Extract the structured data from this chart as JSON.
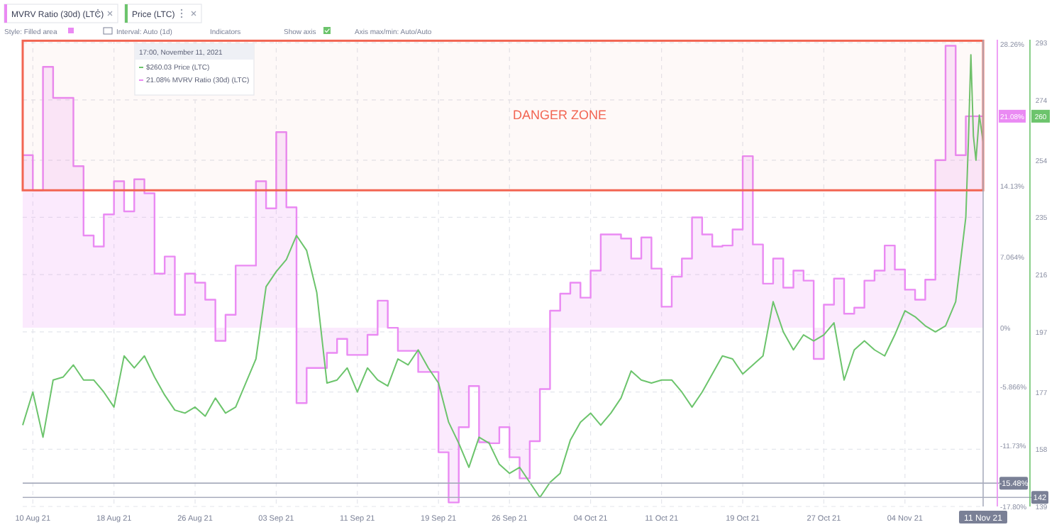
{
  "chart_data": {
    "type": "step",
    "legend": "top left",
    "grid": true,
    "xlim": [
      "2021-08-09",
      "2021-11-11T17:00"
    ],
    "xticks": [
      {
        "value": "2021-08-10",
        "label": "10 Aug 21"
      },
      {
        "value": "2021-08-18",
        "label": "18 Aug 21"
      },
      {
        "value": "2021-08-26",
        "label": "26 Aug 21"
      },
      {
        "value": "2021-09-03",
        "label": "03 Sep 21"
      },
      {
        "value": "2021-09-11",
        "label": "11 Sep 21"
      },
      {
        "value": "2021-09-19",
        "label": "19 Sep 21"
      },
      {
        "value": "2021-09-26",
        "label": "26 Sep 21"
      },
      {
        "value": "2021-10-04",
        "label": "04 Oct 21"
      },
      {
        "value": "2021-10-11",
        "label": "11 Oct 21"
      },
      {
        "value": "2021-10-19",
        "label": "19 Oct 21"
      },
      {
        "value": "2021-10-27",
        "label": "27 Oct 21"
      },
      {
        "value": "2021-11-04",
        "label": "04 Nov 21"
      }
    ],
    "ylim": [
      -17.8,
      28.7
    ],
    "yticks": [
      {
        "value": 28.26,
        "label": "28.26%"
      },
      {
        "value": 14.13,
        "label": "14.13%"
      },
      {
        "value": 7.064,
        "label": "7.064%"
      },
      {
        "value": 0,
        "label": "0%"
      },
      {
        "value": -5.866,
        "label": "-5.866%"
      },
      {
        "value": -11.73,
        "label": "-11.73%"
      },
      {
        "value": -17.8,
        "label": "-17.80%"
      }
    ],
    "y2lim": [
      139,
      294
    ],
    "y2ticks": [
      293,
      274,
      254,
      235,
      216,
      197,
      177,
      158,
      139
    ],
    "series": [
      {
        "name": "MVRV Ratio (30d) (LTC)",
        "color": "#ea8af3",
        "x": [
          "2021-08-09",
          "2021-08-10",
          "2021-08-11",
          "2021-08-12",
          "2021-08-13",
          "2021-08-14",
          "2021-08-15",
          "2021-08-16",
          "2021-08-17",
          "2021-08-18",
          "2021-08-19",
          "2021-08-20",
          "2021-08-21",
          "2021-08-22",
          "2021-08-23",
          "2021-08-24",
          "2021-08-25",
          "2021-08-26",
          "2021-08-27",
          "2021-08-28",
          "2021-08-29",
          "2021-08-30",
          "2021-08-31",
          "2021-09-01",
          "2021-09-02",
          "2021-09-03",
          "2021-09-04",
          "2021-09-05",
          "2021-09-06",
          "2021-09-07",
          "2021-09-08",
          "2021-09-09",
          "2021-09-10",
          "2021-09-11",
          "2021-09-12",
          "2021-09-13",
          "2021-09-14",
          "2021-09-15",
          "2021-09-16",
          "2021-09-17",
          "2021-09-18",
          "2021-09-19",
          "2021-09-20",
          "2021-09-21",
          "2021-09-22",
          "2021-09-23",
          "2021-09-24",
          "2021-09-25",
          "2021-09-26",
          "2021-09-27",
          "2021-09-28",
          "2021-09-29",
          "2021-09-30",
          "2021-10-01",
          "2021-10-02",
          "2021-10-03",
          "2021-10-04",
          "2021-10-05",
          "2021-10-06",
          "2021-10-07",
          "2021-10-08",
          "2021-10-09",
          "2021-10-10",
          "2021-10-11",
          "2021-10-12",
          "2021-10-13",
          "2021-10-14",
          "2021-10-15",
          "2021-10-16",
          "2021-10-17",
          "2021-10-18",
          "2021-10-19",
          "2021-10-20",
          "2021-10-21",
          "2021-10-22",
          "2021-10-23",
          "2021-10-24",
          "2021-10-25",
          "2021-10-26",
          "2021-10-27",
          "2021-10-28",
          "2021-10-29",
          "2021-10-30",
          "2021-10-31",
          "2021-11-01",
          "2021-11-02",
          "2021-11-03",
          "2021-11-04",
          "2021-11-05",
          "2021-11-06",
          "2021-11-07",
          "2021-11-08",
          "2021-11-09",
          "2021-11-10",
          "2021-11-11T17:00"
        ],
        "values": [
          17.2,
          13.7,
          26,
          22.9,
          22.9,
          16.1,
          9.2,
          8.1,
          11.3,
          14.6,
          11.6,
          14.8,
          13.4,
          5.4,
          7.1,
          1.3,
          5.4,
          4.5,
          2.8,
          -1.3,
          1.3,
          6.2,
          6.2,
          14.6,
          11.9,
          19.5,
          12.0,
          -7.5,
          -4.0,
          -4.0,
          -2.5,
          -1.1,
          -2.7,
          -2.7,
          -0.7,
          2.7,
          0,
          -2.3,
          -2.3,
          -4.4,
          -4.4,
          -12.4,
          -17.4,
          -9.9,
          -5.8,
          -11.4,
          -11.5,
          -9.9,
          -12.9,
          -15.0,
          -11.3,
          -6.1,
          1.7,
          3.4,
          4.5,
          3.0,
          5.7,
          9.3,
          9.3,
          8.9,
          6.9,
          9.0,
          5.9,
          2.1,
          5.1,
          6.9,
          11.0,
          9.3,
          8.1,
          8.2,
          9.8,
          17.1,
          8.3,
          4.4,
          6.9,
          4.0,
          5.7,
          4.7,
          -3.1,
          2.3,
          4.9,
          1.4,
          2.0,
          4.7,
          5.7,
          8.2,
          5.8,
          3.8,
          2.8,
          4.8,
          16.7,
          28.1,
          17.2,
          21.08,
          21.08
        ]
      },
      {
        "name": "Price (LTC)",
        "type": "line",
        "axis": "y2",
        "color": "#6cc46c",
        "x": [
          "2021-08-09",
          "2021-08-10",
          "2021-08-11",
          "2021-08-12",
          "2021-08-13",
          "2021-08-14",
          "2021-08-15",
          "2021-08-16",
          "2021-08-17",
          "2021-08-18",
          "2021-08-19",
          "2021-08-20",
          "2021-08-21",
          "2021-08-22",
          "2021-08-23",
          "2021-08-24",
          "2021-08-25",
          "2021-08-26",
          "2021-08-27",
          "2021-08-28",
          "2021-08-29",
          "2021-08-30",
          "2021-08-31",
          "2021-09-01",
          "2021-09-02",
          "2021-09-03",
          "2021-09-04",
          "2021-09-05",
          "2021-09-06",
          "2021-09-07",
          "2021-09-08",
          "2021-09-09",
          "2021-09-10",
          "2021-09-11",
          "2021-09-12",
          "2021-09-13",
          "2021-09-14",
          "2021-09-15",
          "2021-09-16",
          "2021-09-17",
          "2021-09-18",
          "2021-09-19",
          "2021-09-20",
          "2021-09-21",
          "2021-09-22",
          "2021-09-23",
          "2021-09-24",
          "2021-09-25",
          "2021-09-26",
          "2021-09-27",
          "2021-09-28",
          "2021-09-29",
          "2021-09-30",
          "2021-10-01",
          "2021-10-02",
          "2021-10-03",
          "2021-10-04",
          "2021-10-05",
          "2021-10-06",
          "2021-10-07",
          "2021-10-08",
          "2021-10-09",
          "2021-10-10",
          "2021-10-11",
          "2021-10-12",
          "2021-10-13",
          "2021-10-14",
          "2021-10-15",
          "2021-10-16",
          "2021-10-17",
          "2021-10-18",
          "2021-10-19",
          "2021-10-20",
          "2021-10-21",
          "2021-10-22",
          "2021-10-23",
          "2021-10-24",
          "2021-10-25",
          "2021-10-26",
          "2021-10-27",
          "2021-10-28",
          "2021-10-29",
          "2021-10-30",
          "2021-10-31",
          "2021-11-01",
          "2021-11-02",
          "2021-11-03",
          "2021-11-04",
          "2021-11-05",
          "2021-11-06",
          "2021-11-07",
          "2021-11-08",
          "2021-11-09",
          "2021-11-10",
          "2021-11-10T06:00",
          "2021-11-10T12:00",
          "2021-11-10T18:00",
          "2021-11-11T00:00",
          "2021-11-11T08:00",
          "2021-11-11T17:00"
        ],
        "values": [
          166,
          177,
          162,
          181,
          182,
          186,
          181,
          181,
          177,
          172,
          189,
          185,
          189,
          182,
          176,
          171,
          170,
          172,
          169,
          175,
          170,
          172,
          180,
          188,
          212,
          217,
          221,
          229,
          224,
          210,
          180,
          181,
          185,
          177,
          185,
          181,
          179,
          188,
          186,
          191,
          185,
          180,
          167,
          160,
          152,
          162,
          160,
          153,
          150,
          152,
          147,
          142,
          147,
          150,
          161,
          167,
          170,
          166,
          170,
          175,
          184,
          181,
          180,
          181,
          181,
          177,
          172,
          177,
          183,
          189,
          188,
          183,
          186,
          189,
          207,
          197,
          191,
          196,
          194,
          196,
          200,
          181,
          191,
          194,
          191,
          189,
          196,
          204,
          202,
          199,
          197,
          199,
          207,
          235,
          260,
          289,
          262,
          254,
          269,
          260.03
        ]
      }
    ],
    "bands": [
      {
        "axis": "y",
        "from": 13.7,
        "to": 28.6,
        "label": "DANGER ZONE",
        "color": "#f26552"
      }
    ],
    "ref_lines": [
      {
        "axis": "x",
        "value": "2021-11-11T17:00",
        "label": "11 Nov 21",
        "color": "#a9adbd"
      },
      {
        "axis": "y",
        "value": -15.48,
        "label": "-15.48%",
        "color": "#a9adbd"
      },
      {
        "axis": "y2",
        "value": 142,
        "label": "142",
        "color": "#a9adbd"
      }
    ],
    "annotations": [
      "Style: Filled area",
      "Interval: Auto (1d)",
      "Indicators",
      "Show axis",
      "Axis max/min: Auto/Auto",
      "17:00, November 11, 2021",
      "$260.03 Price (LTC)",
      "21.08% MVRV Ratio (30d) (LTC)",
      {
        "text": "21.08%",
        "x": "2021-11-11T17:00",
        "y": 21.08
      },
      "260"
    ]
  }
}
